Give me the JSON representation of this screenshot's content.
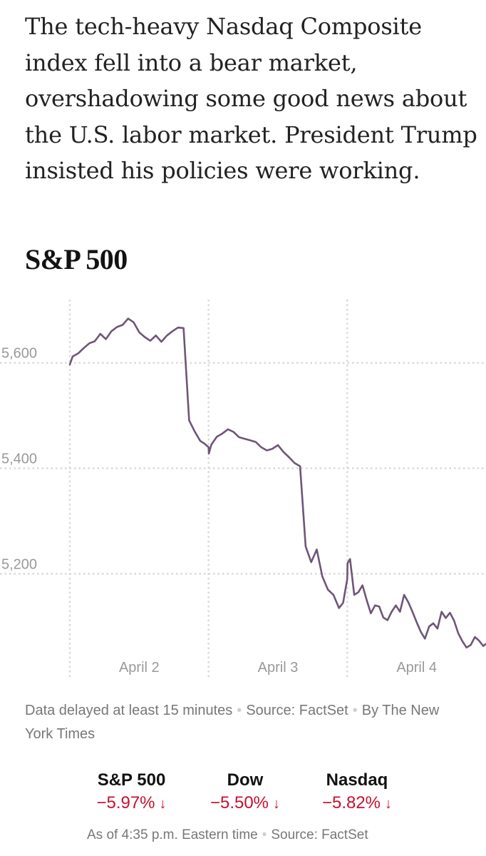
{
  "article": {
    "lede": "The tech-heavy Nasdaq Composite index fell into a bear market, overshadowing some good news about the U.S. labor market. President Trump insisted his policies were working."
  },
  "chart_data": {
    "type": "line",
    "title": "S&P 500",
    "xlabel": "",
    "ylabel": "",
    "x_ticks": [
      "April 2",
      "April 3",
      "April 4"
    ],
    "y_ticks": [
      5200,
      5400,
      5600
    ],
    "y_tick_labels": [
      "5,200",
      "5,400",
      "5,600"
    ],
    "ylim": [
      5030,
      5720
    ],
    "x_range": [
      0,
      3
    ],
    "grid": true,
    "series": [
      {
        "name": "S&P 500",
        "color": "#6e5677",
        "x": [
          0,
          0.02,
          0.06,
          0.1,
          0.14,
          0.18,
          0.22,
          0.26,
          0.3,
          0.34,
          0.38,
          0.42,
          0.46,
          0.5,
          0.54,
          0.58,
          0.62,
          0.66,
          0.7,
          0.74,
          0.78,
          0.82,
          0.86,
          0.9,
          0.94,
          0.97,
          1.0,
          1.002,
          1.02,
          1.06,
          1.1,
          1.14,
          1.18,
          1.22,
          1.26,
          1.3,
          1.34,
          1.38,
          1.42,
          1.46,
          1.5,
          1.54,
          1.58,
          1.62,
          1.66,
          1.7,
          1.74,
          1.78,
          1.82,
          1.86,
          1.9,
          1.94,
          1.97,
          2.0,
          2.002,
          2.02,
          2.05,
          2.08,
          2.11,
          2.14,
          2.17,
          2.2,
          2.23,
          2.26,
          2.29,
          2.32,
          2.35,
          2.38,
          2.41,
          2.44,
          2.47,
          2.5,
          2.53,
          2.56,
          2.59,
          2.62,
          2.65,
          2.68,
          2.71,
          2.74,
          2.77,
          2.8,
          2.83,
          2.86,
          2.89,
          2.92,
          2.95,
          2.98,
          3.0
        ],
        "values": [
          5597,
          5612,
          5618,
          5628,
          5637,
          5641,
          5655,
          5645,
          5660,
          5668,
          5672,
          5684,
          5677,
          5658,
          5649,
          5642,
          5652,
          5640,
          5652,
          5660,
          5667,
          5666,
          5491,
          5470,
          5452,
          5447,
          5440,
          5428,
          5445,
          5460,
          5466,
          5474,
          5469,
          5459,
          5456,
          5453,
          5450,
          5440,
          5434,
          5437,
          5444,
          5431,
          5421,
          5410,
          5404,
          5252,
          5222,
          5246,
          5195,
          5170,
          5160,
          5135,
          5145,
          5190,
          5220,
          5228,
          5160,
          5165,
          5178,
          5150,
          5125,
          5140,
          5138,
          5117,
          5112,
          5128,
          5140,
          5128,
          5160,
          5146,
          5128,
          5108,
          5090,
          5077,
          5100,
          5106,
          5096,
          5128,
          5116,
          5126,
          5111,
          5087,
          5072,
          5060,
          5065,
          5080,
          5073,
          5063,
          5067
        ]
      }
    ]
  },
  "footnote": {
    "delayed": "Data delayed at least 15 minutes",
    "source": "Source: FactSet",
    "byline": "By The New York Times"
  },
  "tickers": [
    {
      "name": "S&P 500",
      "change": "−5.97%",
      "direction": "down"
    },
    {
      "name": "Dow",
      "change": "−5.50%",
      "direction": "down"
    },
    {
      "name": "Nasdaq",
      "change": "−5.82%",
      "direction": "down"
    }
  ],
  "asof": {
    "time": "As of 4:35 p.m. Eastern time",
    "source": "Source: FactSet"
  },
  "icons": {
    "down_arrow": "↓"
  },
  "colors": {
    "line": "#6e5677",
    "negative": "#c8102e",
    "grid": "#d9d9d9"
  }
}
